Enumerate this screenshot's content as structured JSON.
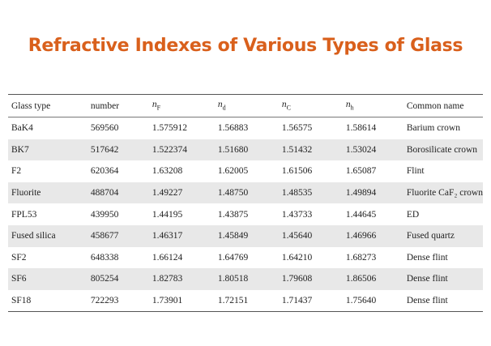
{
  "title": "Refractive Indexes of Various Types of Glass",
  "table": {
    "header": [
      "Glass type",
      "number",
      {
        "symbol": "n",
        "subscript": "F"
      },
      {
        "symbol": "n",
        "subscript": "d"
      },
      {
        "symbol": "n",
        "subscript": "C"
      },
      {
        "symbol": "n",
        "subscript": "h"
      },
      "Common name"
    ],
    "rows": [
      [
        "BaK4",
        "569560",
        "1.575912",
        "1.56883",
        "1.56575",
        "1.58614",
        "Barium crown"
      ],
      [
        "BK7",
        "517642",
        "1.522374",
        "1.51680",
        "1.51432",
        "1.53024",
        "Borosilicate crown"
      ],
      [
        "F2",
        "620364",
        "1.63208",
        "1.62005",
        "1.61506",
        "1.65087",
        "Flint"
      ],
      [
        "Fluorite",
        "488704",
        "1.49227",
        "1.48750",
        "1.48535",
        "1.49894",
        "Fluorite CaF₂ crown"
      ],
      [
        "FPL53",
        "439950",
        "1.44195",
        "1.43875",
        "1.43733",
        "1.44645",
        "ED"
      ],
      [
        "Fused silica",
        "458677",
        "1.46317",
        "1.45849",
        "1.45640",
        "1.46966",
        "Fused quartz"
      ],
      [
        "SF2",
        "648338",
        "1.66124",
        "1.64769",
        "1.64210",
        "1.68273",
        "Dense flint"
      ],
      [
        "SF6",
        "805254",
        "1.82783",
        "1.80518",
        "1.79608",
        "1.86506",
        "Dense flint"
      ],
      [
        "SF18",
        "722293",
        "1.73901",
        "1.72151",
        "1.71437",
        "1.75640",
        "Dense flint"
      ]
    ]
  }
}
